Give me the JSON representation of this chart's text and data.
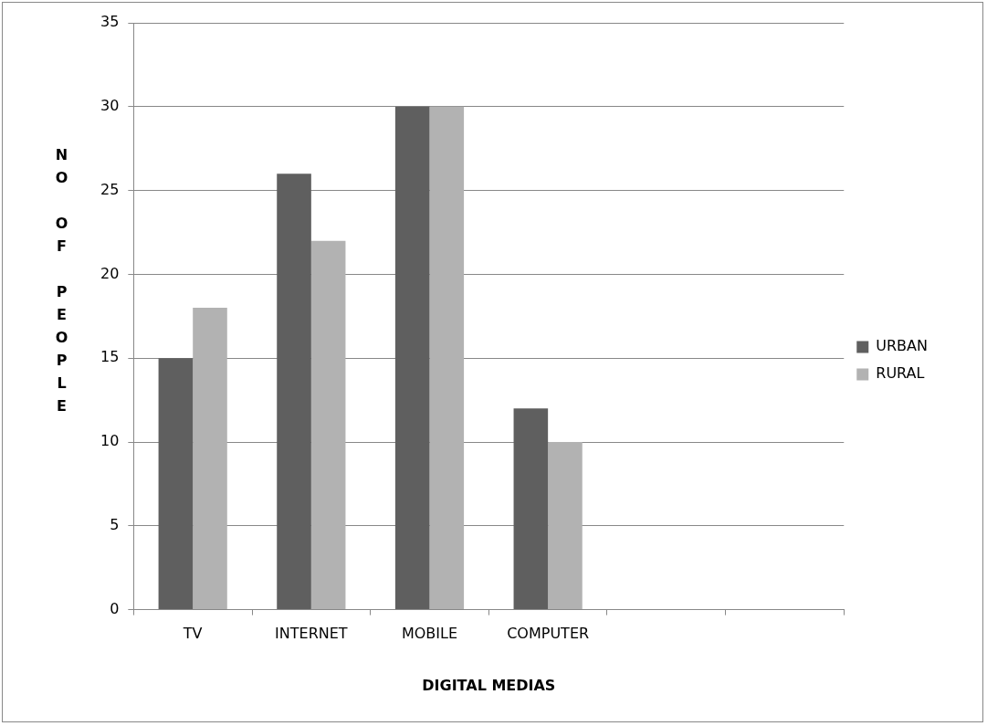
{
  "chart_data": {
    "type": "bar",
    "xlabel": "DIGITAL MEDIAS",
    "ylabel": "NO OF PEOPLE",
    "categories": [
      "TV",
      "INTERNET",
      "MOBILE",
      "COMPUTER",
      null,
      null
    ],
    "series": [
      {
        "name": "URBAN",
        "color": "#5f5f5f",
        "values": [
          15,
          26,
          30,
          12,
          null,
          null
        ]
      },
      {
        "name": "RURAL",
        "color": "#b2b2b2",
        "values": [
          18,
          22,
          30,
          10,
          null,
          null
        ]
      }
    ],
    "ylim": [
      0,
      35
    ],
    "yticks": [
      0,
      5,
      10,
      15,
      20,
      25,
      30,
      35
    ],
    "grid": "y",
    "legend": "right"
  }
}
